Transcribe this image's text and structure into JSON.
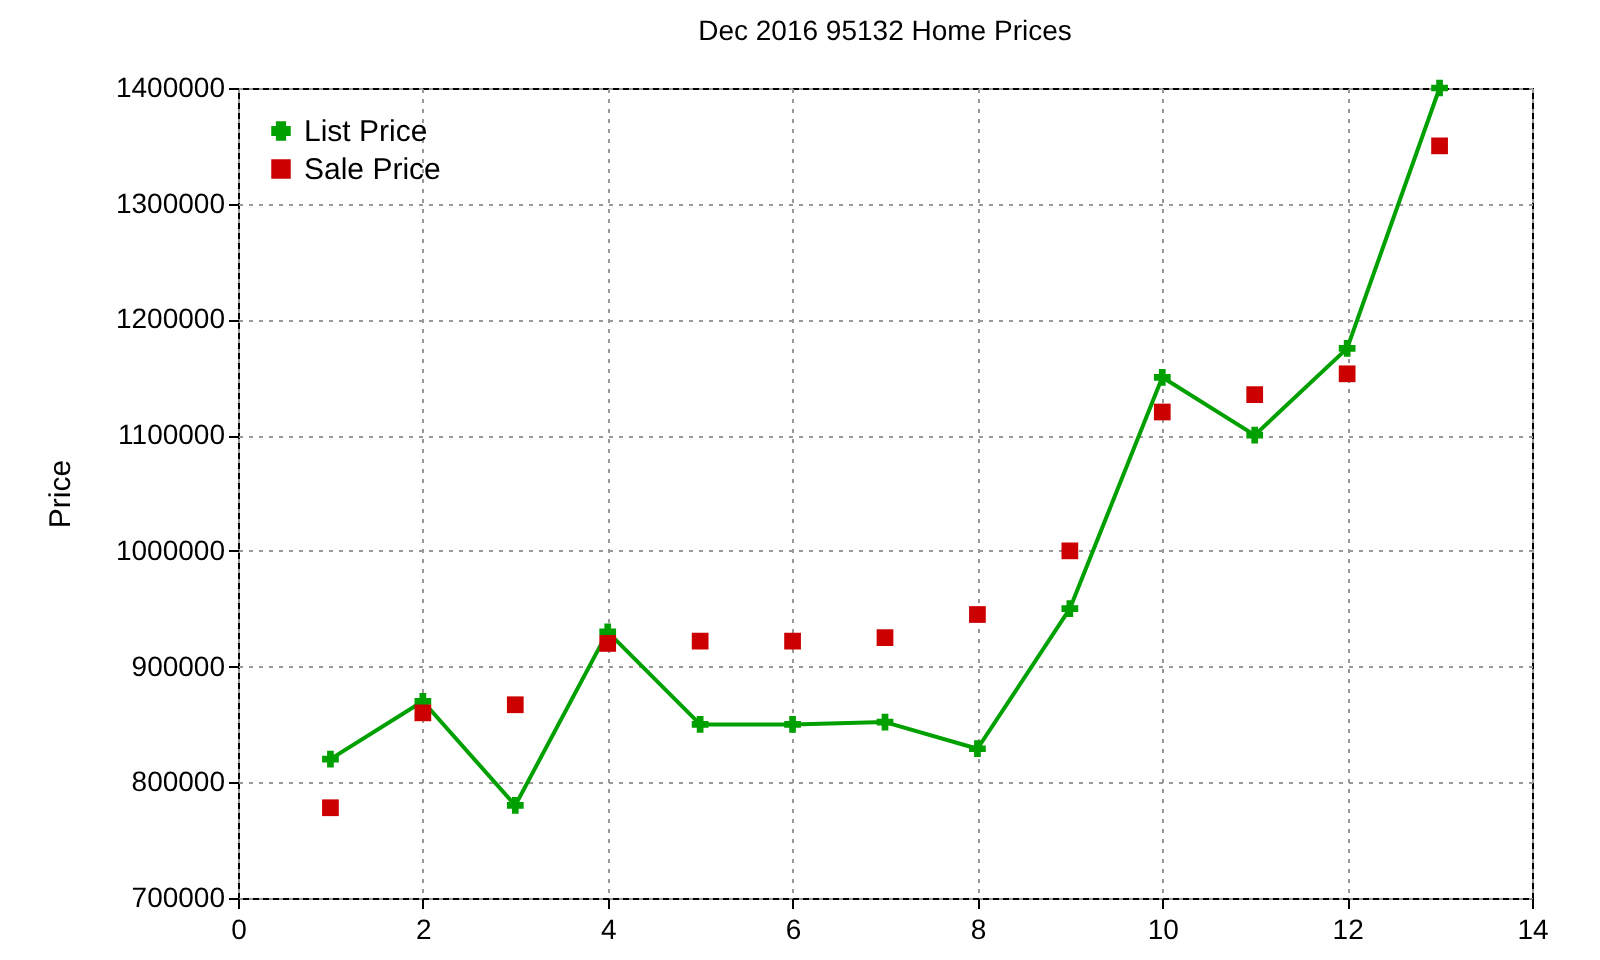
{
  "chart_data": {
    "type": "line",
    "title": "Dec 2016 95132 Home Prices",
    "ylabel": "Price",
    "x": [
      1,
      2,
      3,
      4,
      5,
      6,
      7,
      8,
      9,
      10,
      11,
      12,
      13
    ],
    "series": [
      {
        "name": "List Price",
        "type": "line",
        "marker": "cross",
        "color": "#00a000",
        "values": [
          820000,
          870000,
          780000,
          930000,
          850000,
          850000,
          852000,
          829000,
          950000,
          1150000,
          1100000,
          1175000,
          1400000
        ]
      },
      {
        "name": "Sale Price",
        "type": "scatter",
        "marker": "square",
        "color": "#cc0000",
        "values": [
          778000,
          860000,
          867000,
          920000,
          922000,
          922000,
          925000,
          945000,
          1000000,
          1120000,
          1135000,
          1153000,
          1350000
        ]
      }
    ],
    "xlim": [
      0,
      14
    ],
    "xticks": [
      0,
      2,
      4,
      6,
      8,
      10,
      12,
      14
    ],
    "ylim": [
      700000,
      1400000
    ],
    "yticks": [
      700000,
      800000,
      900000,
      1000000,
      1100000,
      1200000,
      1300000,
      1400000
    ],
    "grid": true,
    "legend": "top left",
    "line_style": "solid"
  }
}
